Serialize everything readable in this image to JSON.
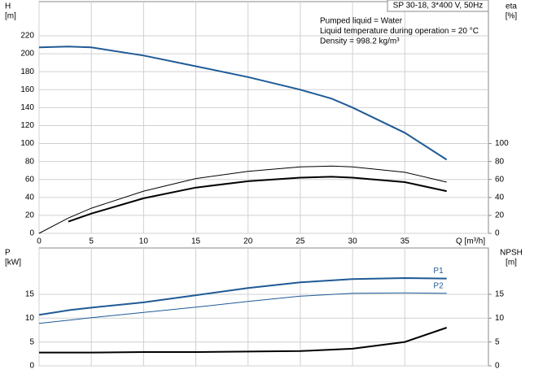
{
  "chart_data": [
    {
      "type": "line",
      "title": "SP 30-18, 3*400 V, 50Hz",
      "annotations": [
        "Pumped liquid = Water",
        "Liquid temperature during operation = 20 °C",
        "Density = 998.2 kg/m³"
      ],
      "ylabel": [
        "H",
        "[m]"
      ],
      "y2label": [
        "eta",
        "[%]"
      ],
      "xlabel": "Q [m³/h]",
      "x": [
        0,
        2.8,
        5,
        10,
        15,
        20,
        25,
        28,
        30,
        35,
        39
      ],
      "xlim": [
        0,
        43
      ],
      "xticks": [
        0,
        5,
        10,
        15,
        20,
        25,
        30,
        35
      ],
      "xtick_labels": true,
      "ylim": [
        0,
        258
      ],
      "yticks": [
        0,
        20,
        40,
        60,
        80,
        100,
        120,
        140,
        160,
        180,
        200,
        220
      ],
      "y2lim": [
        0,
        258
      ],
      "y2ticks": [
        0,
        20,
        40,
        60,
        80,
        100
      ],
      "grid": true,
      "series": [
        {
          "color": "#1f5a96",
          "width": 2,
          "values": [
            207,
            208,
            207,
            198,
            186,
            174,
            160,
            150,
            140,
            112,
            82
          ]
        },
        {
          "color": "#000000",
          "width": 1,
          "axis": "y2",
          "values": [
            0,
            17,
            28,
            47,
            61,
            69,
            74,
            75,
            74,
            68,
            57
          ]
        },
        {
          "color": "#000000",
          "width": 2,
          "axis": "y2",
          "values": [
            null,
            13,
            22,
            39,
            51,
            58,
            62,
            63,
            62,
            57,
            47
          ]
        }
      ]
    },
    {
      "type": "line",
      "ylabel": [
        "P",
        "[kW]"
      ],
      "y2label": [
        "NPSH",
        "[m]"
      ],
      "x": [
        0,
        3,
        5,
        10,
        15,
        20,
        25,
        30,
        35,
        39
      ],
      "xlim": [
        0,
        43
      ],
      "xticks": [
        0,
        5,
        10,
        15,
        20,
        25,
        30,
        35
      ],
      "xtick_labels": false,
      "ylim": [
        0,
        24.7
      ],
      "yticks": [
        0,
        5,
        10,
        15
      ],
      "y2lim": [
        0,
        24.7
      ],
      "y2ticks": [
        0,
        5,
        10,
        15
      ],
      "grid": true,
      "series": [
        {
          "name": "P1",
          "color": "#1f5a96",
          "width": 2,
          "values": [
            10.7,
            11.7,
            12.2,
            13.3,
            14.8,
            16.3,
            17.5,
            18.2,
            18.4,
            18.3
          ]
        },
        {
          "name": "P2",
          "color": "#1f5a96",
          "width": 1,
          "values": [
            8.9,
            9.6,
            10.1,
            11.2,
            12.3,
            13.5,
            14.6,
            15.2,
            15.3,
            15.2
          ]
        },
        {
          "color": "#000000",
          "width": 2,
          "axis": "y2",
          "values": [
            2.8,
            2.8,
            2.8,
            2.9,
            2.9,
            3.0,
            3.1,
            3.6,
            5.0,
            8.0
          ]
        }
      ]
    }
  ]
}
